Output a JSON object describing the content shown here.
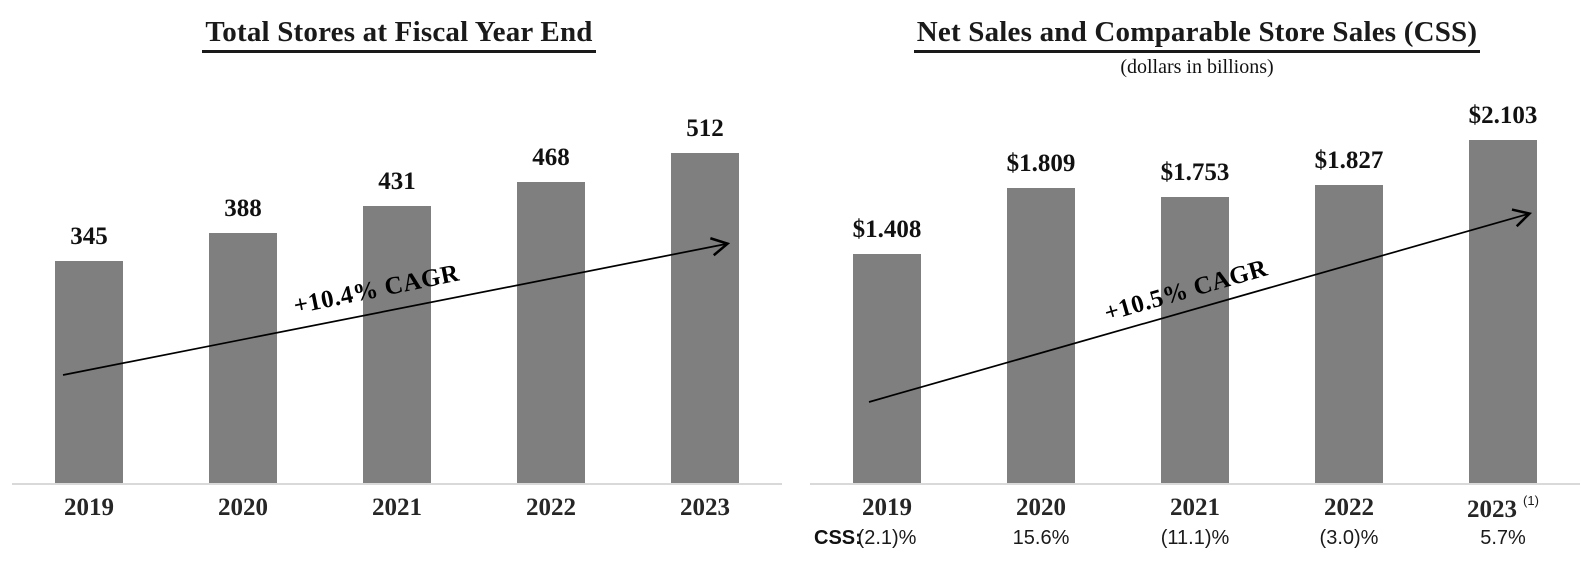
{
  "colors": {
    "bar": "#7f7f7f",
    "axis_line": "#d9d9d9",
    "text": "#1a1a1a",
    "year_label": "#262626",
    "arrow": "#000000"
  },
  "chart_data": [
    {
      "type": "bar",
      "title": "Total Stores at Fiscal Year End",
      "categories": [
        "2019",
        "2020",
        "2021",
        "2022",
        "2023"
      ],
      "values": [
        345,
        388,
        431,
        468,
        512
      ],
      "value_labels": [
        "345",
        "388",
        "431",
        "468",
        "512"
      ],
      "annotation": "+10.4% CAGR",
      "xlabel": "",
      "ylabel": "",
      "grid": false,
      "legend": "none",
      "y_axis_visible": false
    },
    {
      "type": "bar",
      "title": "Net Sales and Comparable Store Sales (CSS)",
      "subtitle": "(dollars in billions)",
      "categories": [
        "2019",
        "2020",
        "2021",
        "2022",
        "2023"
      ],
      "values": [
        1.408,
        1.809,
        1.753,
        1.827,
        2.103
      ],
      "value_labels": [
        "$1.408",
        "$1.809",
        "$1.753",
        "$1.827",
        "$2.103"
      ],
      "annotation": "+10.5% CAGR",
      "footnote_marker": "(1)",
      "footnote_year_index": 4,
      "css_row": {
        "label": "CSS:",
        "values": [
          "(2.1)%",
          "15.6%",
          "(11.1)%",
          "(3.0)%",
          "5.7%"
        ]
      },
      "xlabel": "",
      "ylabel": "",
      "grid": false,
      "legend": "none",
      "y_axis_visible": false
    }
  ]
}
